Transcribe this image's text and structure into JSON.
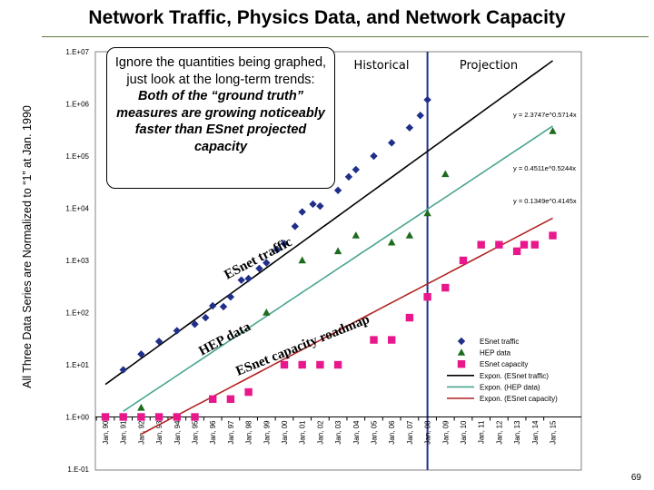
{
  "slide": {
    "title": "Network Traffic, Physics Data, and Network Capacity",
    "number": "69"
  },
  "callout": {
    "line1": "Ignore the quantities being graphed, just look at the long-term trends:",
    "line2": "Both of the “ground truth” measures are growing noticeably faster than ESnet projected capacity"
  },
  "chart_data": {
    "type": "scatter",
    "title": "",
    "ylabel": "All Three Data Series are Normalized to “1” at Jan. 1990",
    "y_scale": "log",
    "ylim": [
      0.1,
      10000000
    ],
    "grid": false,
    "y_tick_labels": [
      "1.E-01",
      "1.E+00",
      "1.E+01",
      "1.E+02",
      "1.E+03",
      "1.E+04",
      "1.E+05",
      "1.E+06",
      "1.E+07"
    ],
    "categories": [
      "Jan, 90",
      "Jan, 91",
      "Jan, 92",
      "Jan, 93",
      "Jan, 94",
      "Jan, 95",
      "Jan, 96",
      "Jan, 97",
      "Jan, 98",
      "Jan, 99",
      "Jan, 00",
      "Jan, 01",
      "Jan, 02",
      "Jan, 03",
      "Jan, 04",
      "Jan, 05",
      "Jan, 06",
      "Jan, 07",
      "Jan, 08",
      "Jan, 09",
      "Jan, 10",
      "Jan, 11",
      "Jan, 12",
      "Jan, 13",
      "Jan, 14",
      "Jan, 15"
    ],
    "era_labels": {
      "historical": "Historical",
      "projection": "Projection"
    },
    "annotations": {
      "esnet_traffic": "ESnet traffic",
      "hep_data": "HEP data",
      "esnet_capacity": "ESnet capacity roadmap"
    },
    "series": [
      {
        "name": "ESnet traffic",
        "color": "#1f2f8a",
        "marker": "diamond",
        "points": [
          [
            1991.0,
            8
          ],
          [
            1992.0,
            16
          ],
          [
            1993.0,
            28
          ],
          [
            1994.0,
            45
          ],
          [
            1995.0,
            60
          ],
          [
            1995.6,
            80
          ],
          [
            1996.0,
            135
          ],
          [
            1996.6,
            130
          ],
          [
            1997.0,
            200
          ],
          [
            1997.6,
            420
          ],
          [
            1998.0,
            450
          ],
          [
            1998.6,
            700
          ],
          [
            1999.0,
            900
          ],
          [
            1999.6,
            1600
          ],
          [
            2000.0,
            2100
          ],
          [
            2000.6,
            4500
          ],
          [
            2001.0,
            8500
          ],
          [
            2001.6,
            12000
          ],
          [
            2002.0,
            11000
          ],
          [
            2003.0,
            22000
          ],
          [
            2003.6,
            40000
          ],
          [
            2004.0,
            55000
          ],
          [
            2005.0,
            100000
          ],
          [
            2006.0,
            180000
          ],
          [
            2007.0,
            350000
          ],
          [
            2007.6,
            600000
          ],
          [
            2008.0,
            1200000
          ]
        ]
      },
      {
        "name": "HEP data",
        "color": "#1e6b1e",
        "marker": "triangle",
        "points": [
          [
            1992.0,
            1.5
          ],
          [
            1999.0,
            100
          ],
          [
            2001.0,
            1000
          ],
          [
            2003.0,
            1500
          ],
          [
            2004.0,
            3000
          ],
          [
            2006.0,
            2200
          ],
          [
            2007.0,
            3000
          ],
          [
            2008.0,
            8000
          ],
          [
            2009.0,
            45000
          ],
          [
            2015.0,
            300000
          ]
        ]
      },
      {
        "name": "ESnet capacity",
        "color": "#e8188c",
        "marker": "square",
        "points": [
          [
            1990.0,
            1
          ],
          [
            1991.0,
            1
          ],
          [
            1992.0,
            1
          ],
          [
            1993.0,
            1
          ],
          [
            1994.0,
            1
          ],
          [
            1995.0,
            1
          ],
          [
            1996.0,
            2.2
          ],
          [
            1997.0,
            2.2
          ],
          [
            1998.0,
            3
          ],
          [
            2000.0,
            10
          ],
          [
            2001.0,
            10
          ],
          [
            2002.0,
            10
          ],
          [
            2003.0,
            10
          ],
          [
            2005.0,
            30
          ],
          [
            2006.0,
            30
          ],
          [
            2007.0,
            80
          ],
          [
            2008.0,
            200
          ],
          [
            2009.0,
            300
          ],
          [
            2010.0,
            1000
          ],
          [
            2011.0,
            2000
          ],
          [
            2012.0,
            2000
          ],
          [
            2013.0,
            1500
          ],
          [
            2013.4,
            2000
          ],
          [
            2014.0,
            2000
          ],
          [
            2015.0,
            3000
          ]
        ]
      }
    ],
    "trendlines": [
      {
        "name": "Expon. (ESnet traffic)",
        "color": "#000000",
        "equation": "y = 2.3747e^0.5714x",
        "a": 2.3747,
        "b": 0.5714,
        "x_start": 1990.0,
        "x_end": 2015.0
      },
      {
        "name": "Expon. (HEP data)",
        "color": "#4aa592",
        "equation": "y = 0.4511e^0.5244x",
        "a": 0.4511,
        "b": 0.5244,
        "x_start": 1991.0,
        "x_end": 2015.0
      },
      {
        "name": "Expon. (ESnet capacity)",
        "color": "#b22222",
        "equation": "y = 0.1349e^0.4145x",
        "a": 0.1349,
        "b": 0.4145,
        "x_start": 1992.0,
        "x_end": 2015.0
      }
    ],
    "legend": {
      "position": "bottom-right",
      "entries": [
        "ESnet traffic",
        "HEP data",
        "ESnet capacity",
        "Expon. (ESnet traffic)",
        "Expon. (HEP data)",
        "Expon. (ESnet capacity)"
      ]
    }
  }
}
